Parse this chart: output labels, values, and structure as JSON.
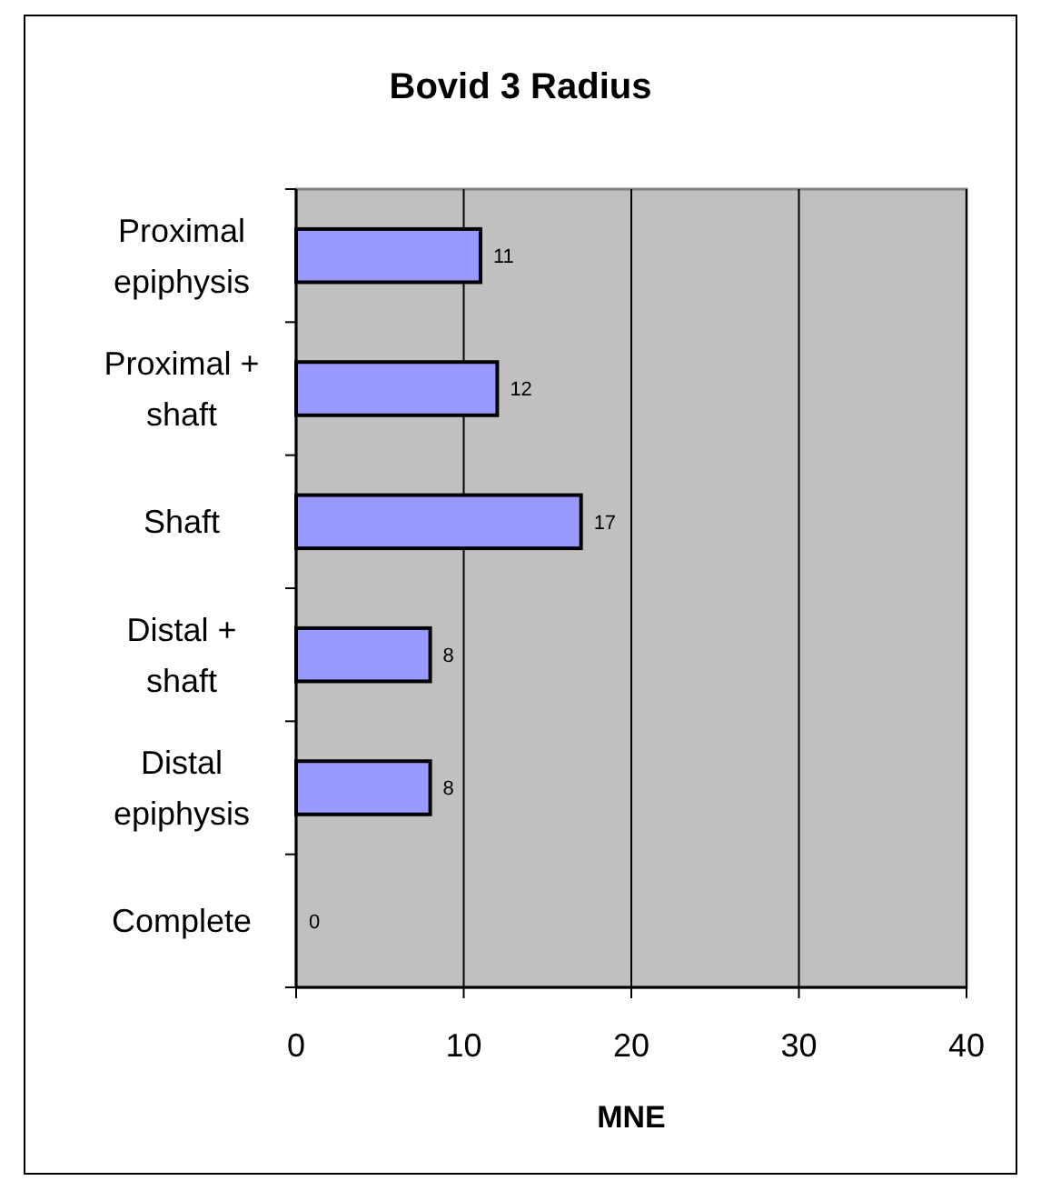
{
  "chart_data": {
    "type": "bar",
    "orientation": "horizontal",
    "title": "Bovid 3 Radius",
    "xlabel": "MNE",
    "categories": [
      "Proximal epiphysis",
      "Proximal + shaft",
      "Shaft",
      "Distal + shaft",
      "Distal epiphysis",
      "Complete"
    ],
    "values": [
      11,
      12,
      17,
      8,
      8,
      0
    ],
    "color": "#9999ff",
    "xlim": [
      0,
      40
    ],
    "xticks": [
      0,
      10,
      20,
      30,
      40
    ],
    "grid": "x",
    "data_labels": true
  }
}
